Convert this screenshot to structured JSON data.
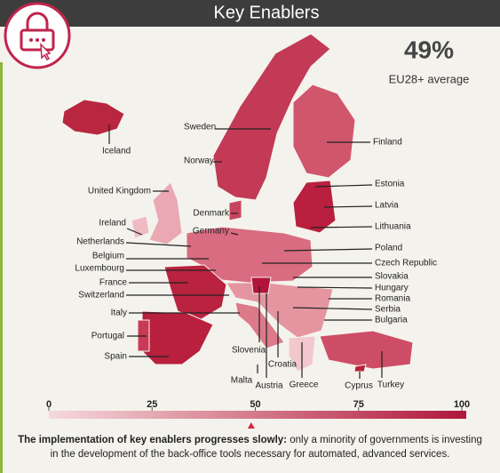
{
  "header": {
    "title": "Key Enablers"
  },
  "scale": {
    "range": [
      0,
      100
    ],
    "ticks": [
      0,
      25,
      50,
      75,
      100
    ],
    "average": {
      "value": 49,
      "label": "49%"
    },
    "average_label": "EU28+ average"
  },
  "countries": [
    "Iceland",
    "Sweden",
    "Norway",
    "Finland",
    "Estonia",
    "Latvia",
    "Lithuania",
    "United Kingdom",
    "Denmark",
    "Ireland",
    "Germany",
    "Netherlands",
    "Poland",
    "Belgium",
    "Czech Republic",
    "Luxembourg",
    "Slovakia",
    "France",
    "Hungary",
    "Switzerland",
    "Romania",
    "Serbia",
    "Italy",
    "Bulgaria",
    "Portugal",
    "Slovenia",
    "Croatia",
    "Spain",
    "Malta",
    "Austria",
    "Greece",
    "Cyprus",
    "Turkey"
  ],
  "caption": {
    "bold": "The implementation of key enablers progresses slowly:",
    "text": "only a minority of governments is investing in the development of the back-office tools necessary for automated, advanced services."
  }
}
